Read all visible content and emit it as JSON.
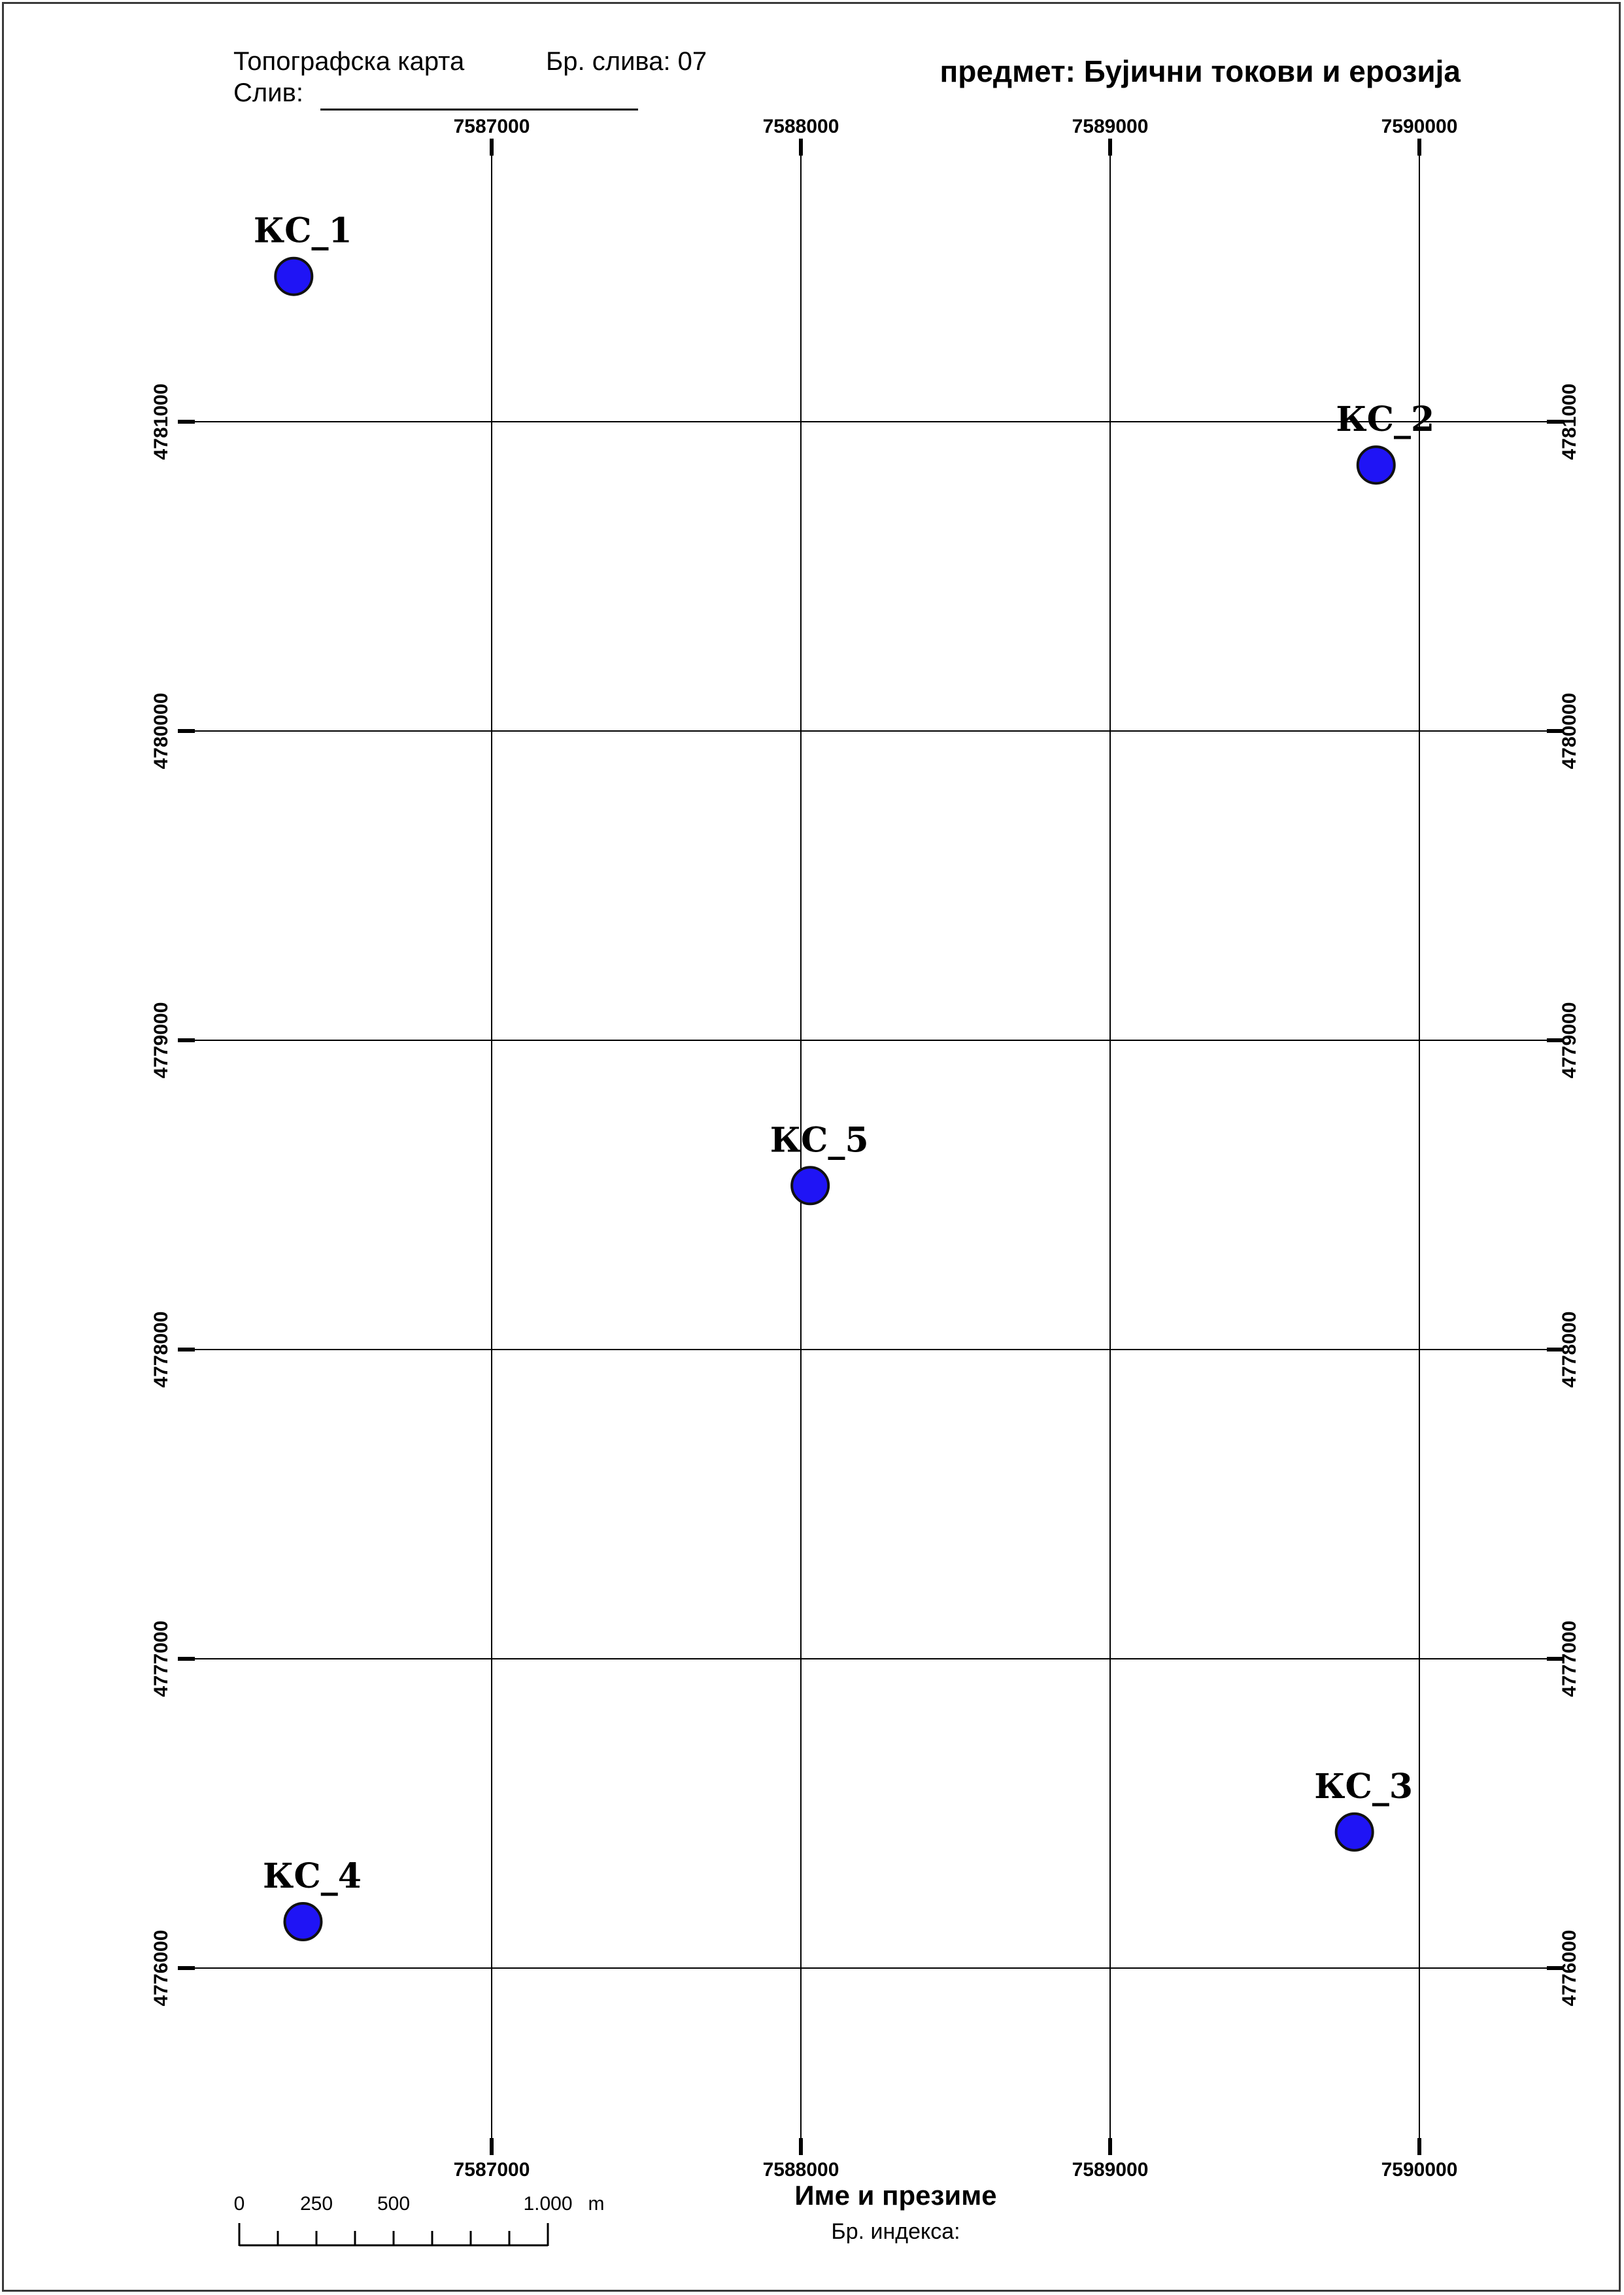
{
  "header": {
    "map_type": "Топографска карта",
    "catchment_number": "Бр. слива: 07",
    "catchment_label": "Слив:",
    "subject": "предмет: Бујични токови и ерозија"
  },
  "footer": {
    "name_label": "Име и презиме",
    "index_label": "Бр. индекса:"
  },
  "grid": {
    "easting_labels": [
      "7587000",
      "7588000",
      "7589000",
      "7590000"
    ],
    "northing_labels": [
      "4781000",
      "4780000",
      "4779000",
      "4778000",
      "4777000",
      "4776000"
    ]
  },
  "points": [
    {
      "label": "КС_1",
      "easting": 7586360,
      "northing": 4781470
    },
    {
      "label": "КС_2",
      "easting": 7589860,
      "northing": 4780860
    },
    {
      "label": "КС_5",
      "easting": 7588030,
      "northing": 4778530
    },
    {
      "label": "КС_3",
      "easting": 7589790,
      "northing": 4776440
    },
    {
      "label": "КС_4",
      "easting": 7586390,
      "northing": 4776150
    }
  ],
  "scale_bar": {
    "labels": [
      "0",
      "250",
      "500",
      "1.000"
    ],
    "unit": "m"
  },
  "colors": {
    "point_fill": "#1f14f5",
    "point_stroke": "#111111",
    "grid_line": "#000000"
  }
}
